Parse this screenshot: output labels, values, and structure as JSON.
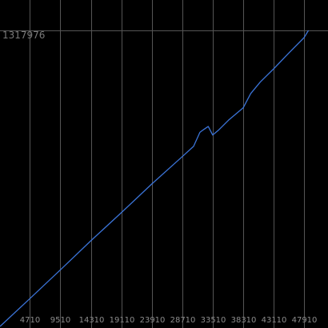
{
  "chart_data": {
    "type": "line",
    "title": "",
    "xlabel": "",
    "ylabel": "",
    "xlim": [
      0,
      48900
    ],
    "ylim": [
      0,
      1317976
    ],
    "y_max_label": "1317976",
    "x_ticks": [
      4710,
      9510,
      14310,
      19110,
      23910,
      28710,
      33510,
      38310,
      43110,
      47910
    ],
    "x_tick_labels": [
      "4710",
      "9510",
      "14310",
      "19110",
      "23910",
      "28710",
      "33510",
      "38310",
      "43110",
      "47910"
    ],
    "grid": true,
    "series": [
      {
        "color": "#3b74d8",
        "x": [
          0,
          4710,
          9510,
          14310,
          19110,
          23910,
          28710,
          30500,
          31500,
          32000,
          32800,
          33510,
          34400,
          36000,
          38310,
          39500,
          41000,
          43110,
          45500,
          47910,
          48600
        ],
        "y": [
          0,
          124000,
          252000,
          381000,
          506000,
          634000,
          756000,
          802000,
          864000,
          875000,
          890000,
          852000,
          873000,
          918000,
          973000,
          1037000,
          1088000,
          1147000,
          1217000,
          1286000,
          1317976
        ]
      }
    ]
  },
  "colors": {
    "background": "#000000",
    "grid": "#555555",
    "line": "#3b74d8",
    "text": "#8c8c8c"
  }
}
